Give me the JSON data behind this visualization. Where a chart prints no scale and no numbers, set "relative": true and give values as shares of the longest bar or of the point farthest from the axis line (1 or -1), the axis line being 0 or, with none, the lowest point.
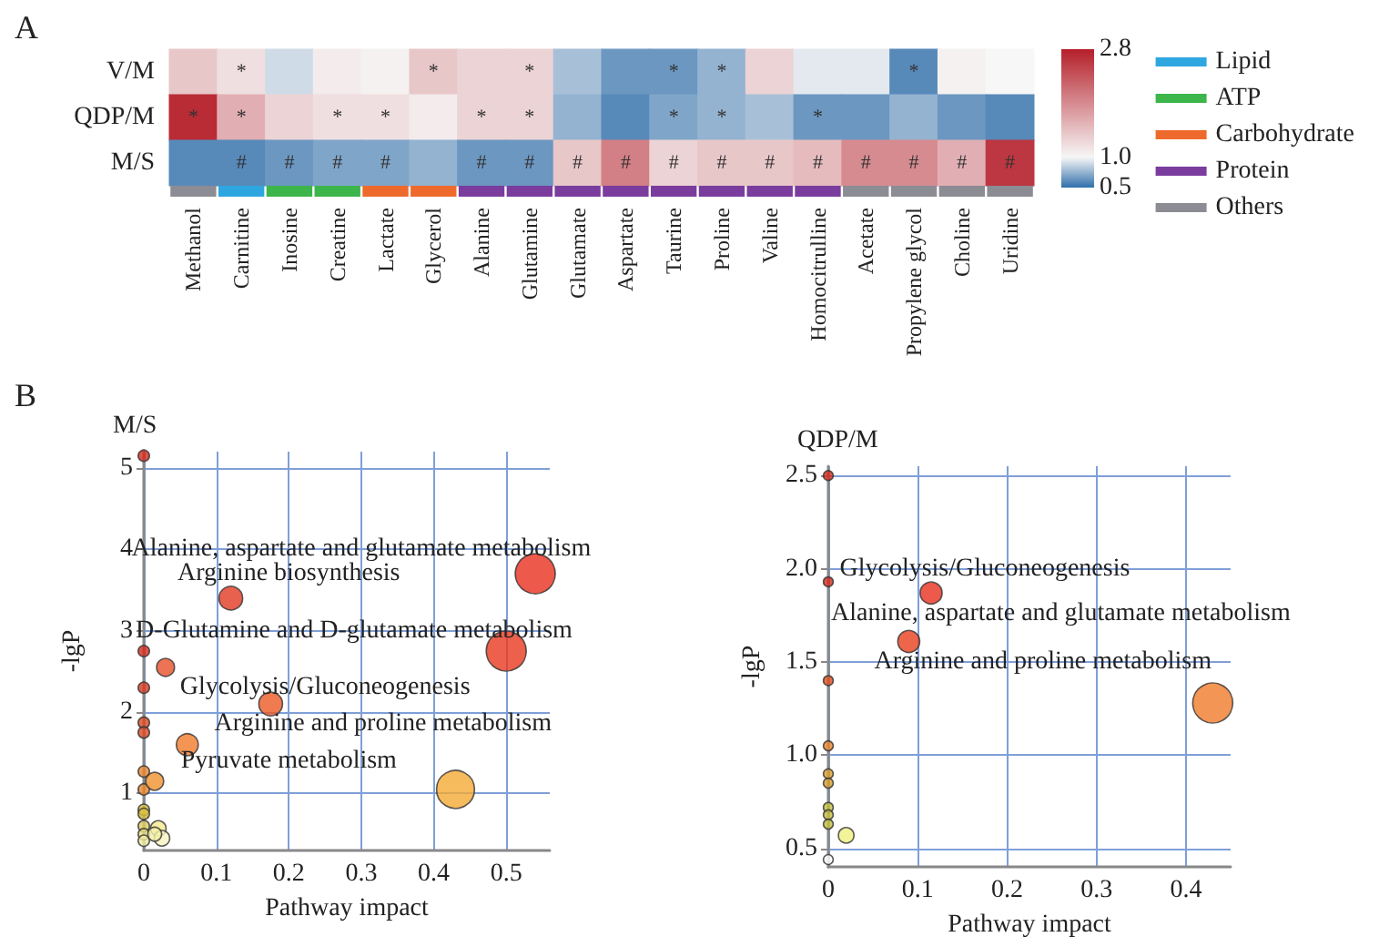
{
  "chart_data": [
    {
      "type": "heatmap",
      "annotations": [
        "A"
      ],
      "clim": [
        0.5,
        2.8
      ],
      "cticks": [
        0.5,
        {
          "value": 1,
          "label": "1.0"
        },
        2.8
      ],
      "categories": [
        "Methanol",
        "Carnitine",
        "Inosine",
        "Creatine",
        "Lactate",
        "Glycerol",
        "Alanine",
        "Glutamine",
        "Glutamate",
        "Aspartate",
        "Taurine",
        "Proline",
        "Valine",
        "Homocitrulline",
        "Acetate",
        "Propylene glycol",
        "Choline",
        "Uridine"
      ],
      "y_categories": [
        "V/M",
        "QDP/M",
        "M/S"
      ],
      "cells": [
        [
          1.4,
          1.2,
          0.9,
          1.1,
          1.05,
          1.4,
          1.3,
          1.3,
          0.8,
          0.65,
          0.65,
          0.75,
          1.3,
          0.95,
          0.95,
          0.6,
          1.05,
          1.0
        ],
        [
          2.7,
          1.6,
          1.3,
          1.2,
          1.2,
          1.1,
          1.3,
          1.3,
          0.75,
          0.6,
          0.7,
          0.75,
          0.8,
          0.65,
          0.65,
          0.75,
          0.65,
          0.6
        ],
        [
          0.6,
          0.6,
          0.65,
          0.7,
          0.7,
          0.75,
          0.65,
          0.65,
          1.4,
          2.0,
          1.3,
          1.4,
          1.4,
          1.5,
          1.9,
          1.9,
          1.6,
          2.6
        ]
      ],
      "cell_labels": [
        [
          null,
          "*",
          null,
          null,
          null,
          "*",
          null,
          "*",
          null,
          null,
          "*",
          "*",
          null,
          null,
          null,
          "*",
          null,
          null
        ],
        [
          "*",
          "*",
          null,
          "*",
          "*",
          null,
          "*",
          "*",
          null,
          null,
          "*",
          "*",
          null,
          "*",
          null,
          null,
          null,
          null
        ],
        [
          null,
          "#",
          "#",
          "#",
          "#",
          null,
          "#",
          "#",
          "#",
          "#",
          "#",
          "#",
          "#",
          "#",
          "#",
          "#",
          "#",
          "#"
        ]
      ]
    },
    {
      "type": "bar",
      "relative": true,
      "stacked": true,
      "legend": "right",
      "categories": [
        null,
        null,
        null,
        null,
        null,
        null,
        null,
        null,
        null,
        null,
        null,
        null,
        null,
        null,
        null,
        null,
        null,
        null
      ],
      "series": [
        {
          "type": "bar",
          "name": "Lipid",
          "color": "#2ea7e0",
          "values": [
            null,
            1,
            null,
            null,
            null,
            null,
            null,
            null,
            null,
            null,
            null,
            null,
            null,
            null,
            null,
            null,
            null,
            null
          ]
        },
        {
          "type": "bar",
          "name": "ATP",
          "color": "#3cb54a",
          "values": [
            null,
            null,
            1,
            1,
            null,
            null,
            null,
            null,
            null,
            null,
            null,
            null,
            null,
            null,
            null,
            null,
            null,
            null
          ]
        },
        {
          "type": "bar",
          "name": "Carbohydrate",
          "color": "#ee6a2c",
          "values": [
            null,
            null,
            null,
            null,
            1,
            1,
            null,
            null,
            null,
            null,
            null,
            null,
            null,
            null,
            null,
            null,
            null,
            null
          ]
        },
        {
          "type": "bar",
          "name": "Protein",
          "color": "#7a3d9e",
          "values": [
            null,
            null,
            null,
            null,
            null,
            null,
            1,
            1,
            1,
            1,
            1,
            1,
            1,
            1,
            null,
            null,
            null,
            null
          ]
        },
        {
          "type": "bar",
          "name": "Others",
          "color": "#8c8c94",
          "values": [
            1,
            null,
            null,
            null,
            null,
            null,
            null,
            null,
            null,
            null,
            null,
            null,
            null,
            null,
            1,
            1,
            1,
            1
          ]
        }
      ]
    },
    {
      "type": "bubble",
      "title": "M/S",
      "xlabel": "Pathway impact",
      "ylabel": "-lgP",
      "grid": true,
      "xlim": [
        0,
        0.56
      ],
      "xticks": [
        0,
        0.1,
        0.2,
        0.3,
        0.4,
        0.5
      ],
      "ylim": [
        0.3,
        5.2
      ],
      "yticks": [
        1,
        2,
        3,
        4,
        5
      ],
      "annotations": [
        "B",
        "Alanine, aspartate and glutamate metabolism",
        "Arginine biosynthesis",
        "D-Glutamine and D-glutamate metabolism",
        "Glycolysis/Gluconeogenesis",
        "Arginine and proline metabolism",
        "Pyruvate metabolism"
      ],
      "series": [
        {
          "x": [
            0,
            0.54,
            0.12,
            0,
            0.03,
            0,
            0.5,
            0.175,
            0,
            0,
            0.06,
            0,
            0,
            0.015,
            0.43,
            0,
            0,
            0,
            0,
            0,
            0.02,
            0.025,
            0.015
          ],
          "values": [
            5.15,
            3.7,
            3.4,
            2.75,
            2.55,
            2.3,
            2.75,
            2.1,
            1.87,
            1.75,
            1.6,
            1.27,
            1.05,
            1.15,
            1.05,
            0.8,
            0.75,
            0.6,
            0.5,
            0.42,
            0.57,
            0.45,
            0.5
          ],
          "sizes": [
            0.08,
            1,
            0.35,
            0.08,
            0.2,
            0.08,
            1,
            0.35,
            0.08,
            0.08,
            0.3,
            0.08,
            0.08,
            0.2,
            0.9,
            0.08,
            0.08,
            0.08,
            0.08,
            0.08,
            0.15,
            0.15,
            0.12
          ],
          "colors": [
            "#d42a1c",
            "#e8301e",
            "#e23a22",
            "#d42a1c",
            "#e8502a",
            "#d83a20",
            "#e8381e",
            "#ec5a26",
            "#dc4a22",
            "#dc4a22",
            "#f07a2a",
            "#e8862e",
            "#e8862e",
            "#f0922e",
            "#f4aa34",
            "#d8c040",
            "#d8c040",
            "#e0d060",
            "#e8e080",
            "#f0eca0",
            "#f2ec8c",
            "#f8f4c0",
            "#f4f0a8"
          ]
        }
      ]
    },
    {
      "type": "bubble",
      "title": "QDP/M",
      "xlabel": "Pathway impact",
      "ylabel": "-lgP",
      "grid": true,
      "xlim": [
        0,
        0.45
      ],
      "xticks": [
        0,
        0.1,
        0.2,
        0.3,
        0.4
      ],
      "ylim": [
        0.4,
        2.55
      ],
      "yticks": [
        {
          "value": 0.5,
          "label": "0.5"
        },
        {
          "value": 1,
          "label": "1.0"
        },
        {
          "value": 1.5,
          "label": "1.5"
        },
        {
          "value": 2,
          "label": "2.0"
        },
        {
          "value": 2.5,
          "label": "2.5"
        }
      ],
      "annotations": [
        "Glycolysis/Gluconeogenesis",
        "Alanine, aspartate and glutamate metabolism",
        "Arginine and proline metabolism"
      ],
      "series": [
        {
          "x": [
            0,
            0,
            0.115,
            0.09,
            0,
            0.43,
            0,
            0,
            0,
            0,
            0,
            0,
            0.02,
            0
          ],
          "values": [
            2.5,
            1.93,
            1.87,
            1.61,
            1.4,
            1.28,
            1.05,
            0.9,
            0.85,
            0.72,
            0.68,
            0.63,
            0.57,
            0.44
          ],
          "sizes": [
            0.06,
            0.06,
            0.3,
            0.3,
            0.06,
            1,
            0.06,
            0.06,
            0.06,
            0.06,
            0.06,
            0.06,
            0.15,
            0.06
          ],
          "colors": [
            "#d42a1c",
            "#d42a1c",
            "#e8301e",
            "#e8401e",
            "#e0501e",
            "#f07a2a",
            "#e8862e",
            "#d8a030",
            "#d8a030",
            "#c8c040",
            "#c8c040",
            "#c8c040",
            "#f0f080",
            "#ffffff"
          ]
        }
      ]
    }
  ]
}
